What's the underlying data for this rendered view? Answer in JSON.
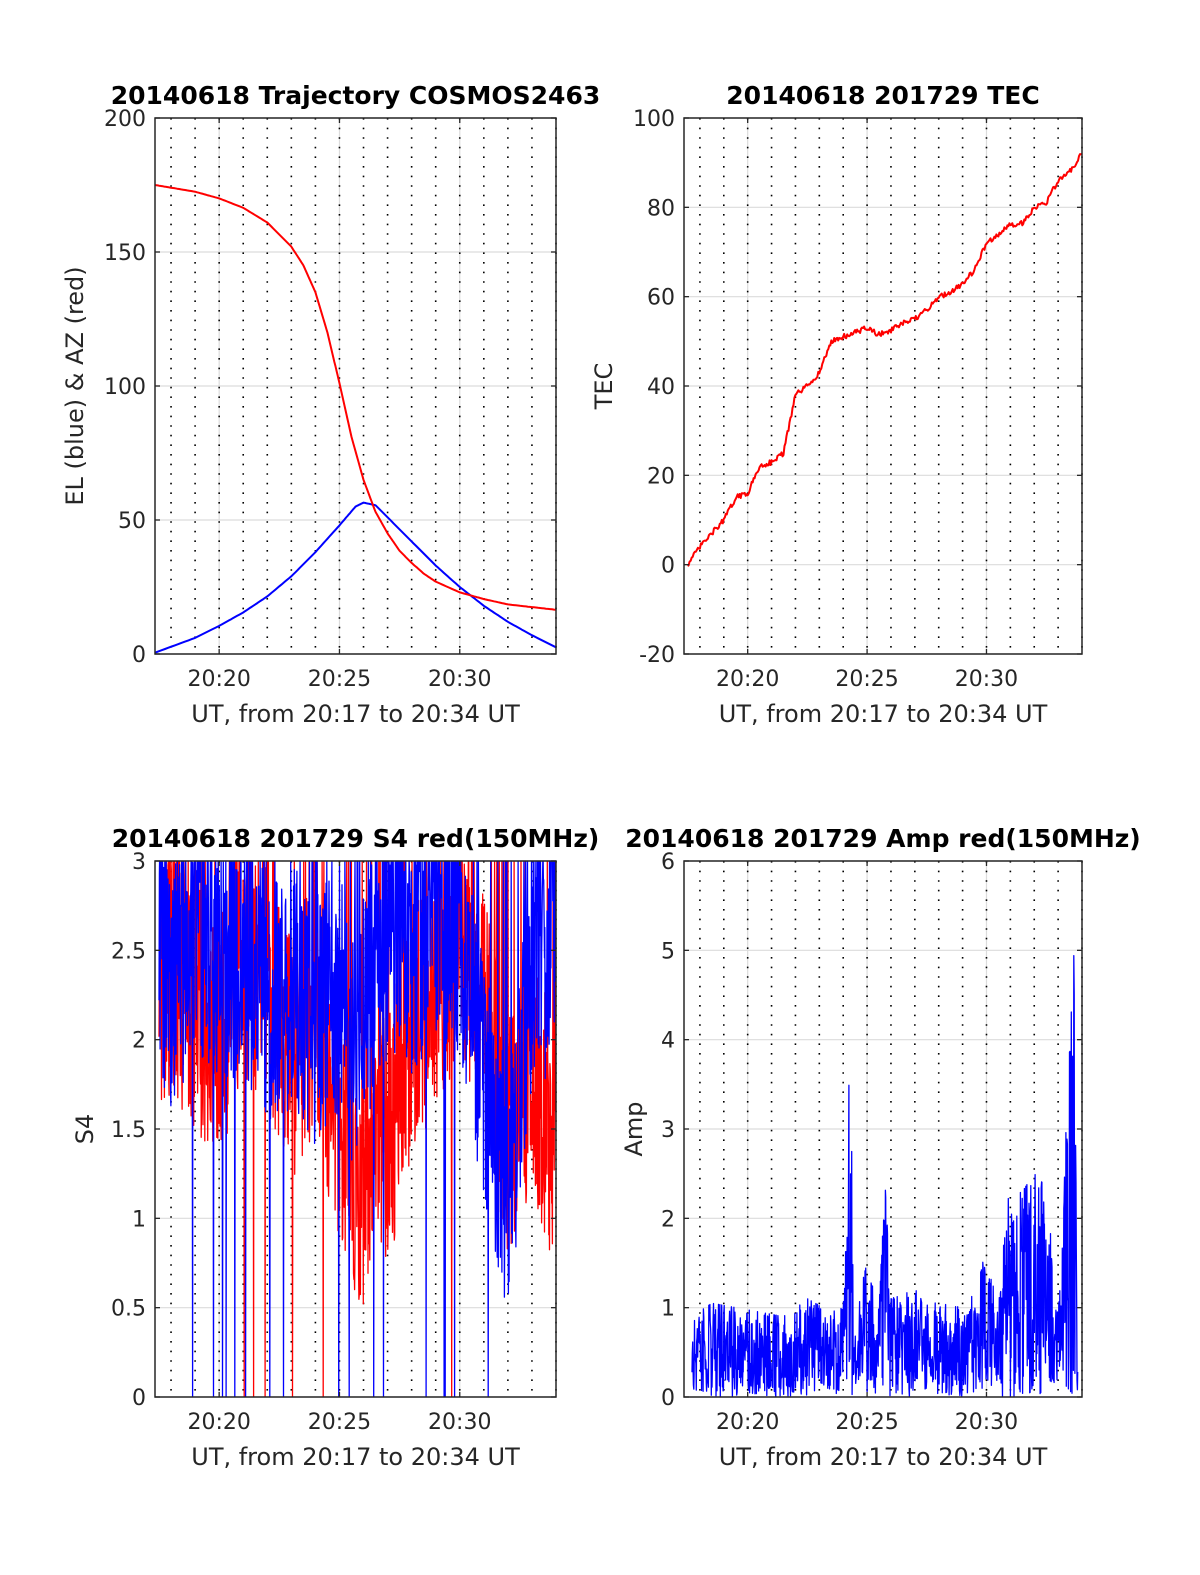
{
  "figure": {
    "background": "#ffffff",
    "colors": {
      "red": "#ff0000",
      "blue": "#0000ff",
      "grid": "#dcdcdc",
      "axis": "#262626"
    },
    "vertical_dotted_lines_every_minutes": 1
  },
  "chart_data": [
    {
      "id": "trajectory",
      "type": "line",
      "title": "20140618 Trajectory COSMOS2463",
      "xlabel": "UT, from 20:17 to 20:34 UT",
      "ylabel": "EL (blue) & AZ (red)",
      "x_unit": "UT time",
      "xlim": [
        "20:17:20",
        "20:34:00"
      ],
      "ylim": [
        0,
        200
      ],
      "xticks": [
        "20:20",
        "20:25",
        "20:30"
      ],
      "yticks": [
        0,
        50,
        100,
        150,
        200
      ],
      "grid": true,
      "series": [
        {
          "color": "#0000ff",
          "x": [
            "20:17:20",
            "20:19:00",
            "20:20:00",
            "20:21:00",
            "20:22:00",
            "20:23:00",
            "20:24:00",
            "20:25:00",
            "20:25:40",
            "20:26:00",
            "20:26:30",
            "20:27:00",
            "20:28:00",
            "20:29:00",
            "20:30:00",
            "20:31:00",
            "20:32:00",
            "20:33:00",
            "20:34:00"
          ],
          "y": [
            0.5,
            6,
            10.5,
            15.5,
            21.5,
            29,
            38,
            48,
            55,
            56.5,
            55.5,
            51,
            42,
            33,
            25,
            18,
            12,
            7,
            2.5
          ]
        },
        {
          "color": "#ff0000",
          "x": [
            "20:17:20",
            "20:18:00",
            "20:19:00",
            "20:20:00",
            "20:21:00",
            "20:22:00",
            "20:23:00",
            "20:23:30",
            "20:24:00",
            "20:24:30",
            "20:25:00",
            "20:25:30",
            "20:26:00",
            "20:26:30",
            "20:27:00",
            "20:27:30",
            "20:28:00",
            "20:28:30",
            "20:29:00",
            "20:30:00",
            "20:31:00",
            "20:32:00",
            "20:33:00",
            "20:34:00"
          ],
          "y": [
            175,
            174,
            172.5,
            170,
            166.5,
            161,
            152,
            145,
            135,
            120,
            101,
            81,
            65,
            53,
            45,
            38.5,
            34,
            30,
            27,
            23,
            20.5,
            18.5,
            17.5,
            16.5
          ]
        }
      ]
    },
    {
      "id": "tec",
      "type": "line",
      "title": "20140618 201729 TEC",
      "xlabel": "UT, from 20:17 to 20:34 UT",
      "ylabel": "TEC",
      "x_unit": "UT time",
      "xlim": [
        "20:17:20",
        "20:34:00"
      ],
      "ylim": [
        -20,
        100
      ],
      "xticks": [
        "20:20",
        "20:25",
        "20:30"
      ],
      "yticks": [
        -20,
        0,
        20,
        40,
        60,
        80,
        100
      ],
      "grid": true,
      "series": [
        {
          "color": "#ff0000",
          "x": [
            "20:17:29",
            "20:18:00",
            "20:18:30",
            "20:19:00",
            "20:19:30",
            "20:20:00",
            "20:20:30",
            "20:21:00",
            "20:21:30",
            "20:22:00",
            "20:22:30",
            "20:23:00",
            "20:23:30",
            "20:24:00",
            "20:24:30",
            "20:25:00",
            "20:25:30",
            "20:26:00",
            "20:26:30",
            "20:27:00",
            "20:27:30",
            "20:28:00",
            "20:28:30",
            "20:29:00",
            "20:29:30",
            "20:30:00",
            "20:30:30",
            "20:31:00",
            "20:31:30",
            "20:32:00",
            "20:32:30",
            "20:33:00",
            "20:33:30",
            "20:34:00"
          ],
          "y": [
            0,
            4,
            7,
            10,
            15,
            16,
            22,
            23,
            25,
            38,
            40,
            43,
            50,
            51,
            52,
            53,
            51.5,
            52.5,
            54,
            55,
            57,
            60,
            61,
            63,
            66,
            72,
            74,
            76,
            76.5,
            80,
            81,
            86,
            88,
            92
          ]
        }
      ]
    },
    {
      "id": "s4",
      "type": "line",
      "title": "20140618 201729 S4 red(150MHz)",
      "xlabel": "UT, from 20:17 to 20:34 UT",
      "ylabel": "S4",
      "x_unit": "UT time",
      "xlim": [
        "20:17:20",
        "20:34:00"
      ],
      "ylim": [
        0,
        3
      ],
      "xticks": [
        "20:20",
        "20:25",
        "20:30"
      ],
      "yticks": [
        0,
        0.5,
        1,
        1.5,
        2,
        2.5,
        3
      ],
      "grid": true,
      "series": [
        {
          "color": "#ff0000",
          "x": [
            "20:17:30",
            "20:18:00",
            "20:19:00",
            "20:20:00",
            "20:21:00",
            "20:22:00",
            "20:23:00",
            "20:24:00",
            "20:25:00",
            "20:25:30",
            "20:26:00",
            "20:26:30",
            "20:27:00",
            "20:28:00",
            "20:29:00",
            "20:30:00",
            "20:31:00",
            "20:32:00",
            "20:33:00",
            "20:34:00"
          ],
          "y": [
            2.3,
            2.4,
            2.2,
            2.0,
            2.5,
            2.3,
            1.9,
            2.2,
            1.5,
            1.3,
            1.2,
            1.6,
            1.4,
            2.0,
            2.3,
            2.6,
            2.2,
            1.5,
            1.8,
            1.4
          ]
        },
        {
          "color": "#0000ff",
          "x": [
            "20:17:30",
            "20:18:00",
            "20:19:00",
            "20:20:00",
            "20:21:00",
            "20:22:00",
            "20:23:00",
            "20:24:00",
            "20:25:00",
            "20:25:30",
            "20:26:00",
            "20:26:30",
            "20:27:00",
            "20:28:00",
            "20:29:00",
            "20:30:00",
            "20:31:00",
            "20:32:00",
            "20:33:00",
            "20:34:00"
          ],
          "y": [
            2.5,
            2.3,
            2.6,
            2.4,
            2.5,
            2.2,
            2.3,
            2.1,
            2.3,
            2.0,
            2.2,
            2.4,
            2.6,
            2.5,
            2.7,
            2.6,
            1.8,
            1.1,
            2.4,
            2.5
          ]
        }
      ]
    },
    {
      "id": "amp",
      "type": "line",
      "title": "20140618 201729 Amp red(150MHz)",
      "xlabel": "UT, from 20:17 to 20:34 UT",
      "ylabel": "Amp",
      "x_unit": "UT time",
      "xlim": [
        "20:17:20",
        "20:34:00"
      ],
      "ylim": [
        0,
        6
      ],
      "xticks": [
        "20:20",
        "20:25",
        "20:30"
      ],
      "yticks": [
        0,
        1,
        2,
        3,
        4,
        5,
        6
      ],
      "grid": true,
      "series": [
        {
          "color": "#0000ff",
          "x": [
            "20:17:40",
            "20:18:30",
            "20:19:30",
            "20:20:30",
            "20:21:30",
            "20:22:30",
            "20:23:30",
            "20:24:00",
            "20:24:15",
            "20:24:30",
            "20:25:00",
            "20:25:30",
            "20:25:45",
            "20:26:00",
            "20:27:00",
            "20:28:00",
            "20:29:00",
            "20:29:40",
            "20:30:00",
            "20:30:30",
            "20:31:00",
            "20:31:30",
            "20:32:00",
            "20:32:30",
            "20:33:00",
            "20:33:40",
            "20:33:50"
          ],
          "y": [
            0.9,
            1.05,
            1.0,
            0.95,
            0.9,
            1.1,
            0.95,
            1.0,
            4.05,
            1.0,
            1.5,
            1.0,
            2.4,
            1.1,
            1.2,
            1.05,
            1.0,
            1.4,
            1.6,
            1.1,
            2.5,
            2.3,
            2.5,
            2.35,
            1.0,
            5.0,
            0.8
          ]
        }
      ]
    }
  ]
}
